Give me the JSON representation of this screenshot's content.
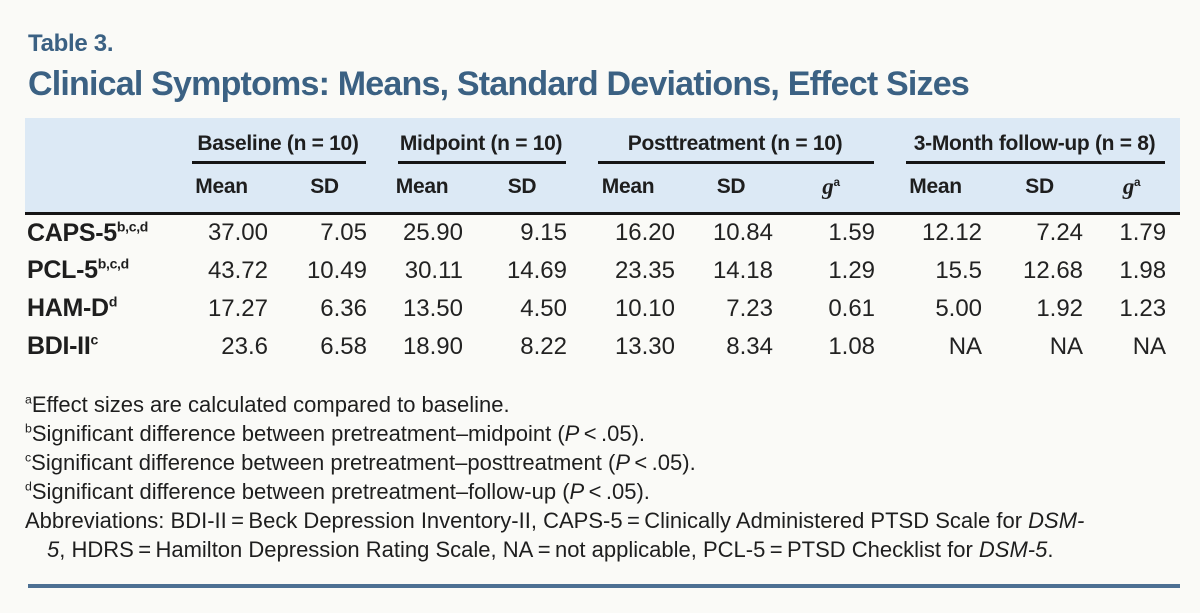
{
  "colors": {
    "accent_blue": "#3b6183",
    "header_band_blue": "#dce9f5",
    "bottom_rule_blue": "#4d7093",
    "body_text": "#1e1e1e",
    "background": "#fafaf7"
  },
  "title": {
    "label": "Table 3.",
    "heading": "Clinical Symptoms: Means, Standard Deviations, Effect Sizes"
  },
  "table": {
    "groups": [
      {
        "label": "Baseline (n = 10)"
      },
      {
        "label": "Midpoint (n = 10)"
      },
      {
        "label": "Posttreatment (n = 10)"
      },
      {
        "label": "3-Month follow-up (n = 8)"
      }
    ],
    "subheaders": [
      "Mean",
      "SD",
      "Mean",
      "SD",
      "Mean",
      "SD",
      "<i>g</i><sup>a</sup>",
      "Mean",
      "SD",
      "<i>g</i><sup>a</sup>"
    ],
    "rows": [
      {
        "label": "CAPS-5<sup>b,c,d</sup>",
        "values": [
          "37.00",
          "7.05",
          "25.90",
          "9.15",
          "16.20",
          "10.84",
          "1.59",
          "12.12",
          "7.24",
          "1.79"
        ]
      },
      {
        "label": "PCL-5<sup>b,c,d</sup>",
        "values": [
          "43.72",
          "10.49",
          "30.11",
          "14.69",
          "23.35",
          "14.18",
          "1.29",
          "15.5",
          "12.68",
          "1.98"
        ]
      },
      {
        "label": "HAM-D<sup>d</sup>",
        "values": [
          "17.27",
          "6.36",
          "13.50",
          "4.50",
          "10.10",
          "7.23",
          "0.61",
          "5.00",
          "1.92",
          "1.23"
        ]
      },
      {
        "label": "BDI-II<sup>c</sup>",
        "values": [
          "23.6",
          "6.58",
          "18.90",
          "8.22",
          "13.30",
          "8.34",
          "1.08",
          "NA",
          "NA",
          "NA"
        ]
      }
    ]
  },
  "footnotes": [
    "<sup>a</sup>Effect sizes are calculated compared to baseline.",
    "<sup>b</sup>Significant difference between pretreatment–midpoint (<i>P</i> < .05).",
    "<sup>c</sup>Significant difference between pretreatment–posttreatment (<i>P</i> < .05).",
    "<sup>d</sup>Significant difference between pretreatment–follow-up (<i>P</i> < .05).",
    "Abbreviations: BDI-II = Beck Depression Inventory-II, CAPS-5 = Clinically Administered PTSD Scale for <i>DSM-</i><br><i>5</i>, HDRS = Hamilton Depression Rating Scale, NA = not applicable, PCL-5 = PTSD Checklist for <i>DSM-5</i>."
  ]
}
